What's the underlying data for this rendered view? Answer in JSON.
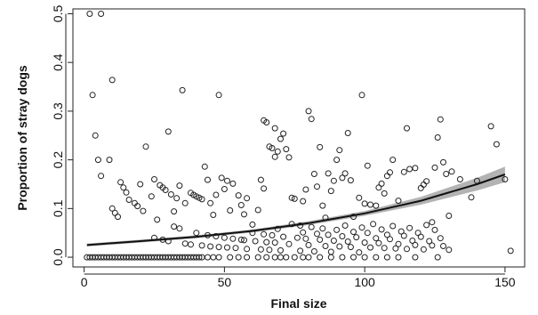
{
  "chart_data": {
    "type": "scatter",
    "title": "",
    "xlabel": "Final size",
    "ylabel": "Proportion of stray dogs",
    "xlim": [
      -4,
      157
    ],
    "ylim": [
      -0.02,
      0.51
    ],
    "xticks": [
      0,
      50,
      100,
      150
    ],
    "yticks": [
      0.0,
      0.1,
      0.2,
      0.3,
      0.4,
      0.5
    ],
    "xtick_labels": [
      "0",
      "50",
      "100",
      "150"
    ],
    "ytick_labels": [
      "0.0",
      "0.1",
      "0.2",
      "0.3",
      "0.4",
      "0.5"
    ],
    "grid": false,
    "legend": "none",
    "point_color": "#222222",
    "fit_color": "#111111",
    "band_color": "#9a9a9a",
    "fit_line": {
      "x": [
        1,
        20,
        40,
        60,
        80,
        100,
        120,
        140,
        150
      ],
      "y": [
        0.025,
        0.033,
        0.042,
        0.054,
        0.07,
        0.09,
        0.116,
        0.15,
        0.17
      ],
      "lower": [
        0.022,
        0.03,
        0.039,
        0.051,
        0.066,
        0.085,
        0.108,
        0.137,
        0.154
      ],
      "upper": [
        0.028,
        0.036,
        0.045,
        0.057,
        0.074,
        0.095,
        0.124,
        0.163,
        0.186
      ]
    },
    "series": [
      {
        "points": [
          [
            2,
            0.5
          ],
          [
            6,
            0.5
          ],
          [
            3,
            0.333
          ],
          [
            10,
            0.364
          ],
          [
            4,
            0.25
          ],
          [
            5,
            0.2
          ],
          [
            6,
            0.167
          ],
          [
            9,
            0.2
          ],
          [
            10,
            0.1
          ],
          [
            11,
            0.091
          ],
          [
            12,
            0.083
          ],
          [
            13,
            0.154
          ],
          [
            14,
            0.143
          ],
          [
            15,
            0.133
          ],
          [
            16,
            0.118
          ],
          [
            18,
            0.111
          ],
          [
            19,
            0.105
          ],
          [
            20,
            0.15
          ],
          [
            21,
            0.095
          ],
          [
            22,
            0.227
          ],
          [
            24,
            0.125
          ],
          [
            25,
            0.16
          ],
          [
            26,
            0.077
          ],
          [
            27,
            0.148
          ],
          [
            28,
            0.143
          ],
          [
            29,
            0.138
          ],
          [
            30,
            0.258
          ],
          [
            31,
            0.129
          ],
          [
            32,
            0.094
          ],
          [
            33,
            0.121
          ],
          [
            34,
            0.147
          ],
          [
            35,
            0.343
          ],
          [
            36,
            0.111
          ],
          [
            38,
            0.132
          ],
          [
            39,
            0.128
          ],
          [
            40,
            0.125
          ],
          [
            41,
            0.122
          ],
          [
            42,
            0.119
          ],
          [
            43,
            0.186
          ],
          [
            44,
            0.159
          ],
          [
            45,
            0.111
          ],
          [
            46,
            0.087
          ],
          [
            47,
            0.128
          ],
          [
            48,
            0.333
          ],
          [
            49,
            0.163
          ],
          [
            50,
            0.14
          ],
          [
            51,
            0.157
          ],
          [
            52,
            0.096
          ],
          [
            53,
            0.151
          ],
          [
            55,
            0.127
          ],
          [
            56,
            0.107
          ],
          [
            57,
            0.088
          ],
          [
            58,
            0.121
          ],
          [
            60,
            0.067
          ],
          [
            62,
            0.097
          ],
          [
            63,
            0.159
          ],
          [
            64,
            0.141
          ],
          [
            64,
            0.281
          ],
          [
            65,
            0.277
          ],
          [
            66,
            0.227
          ],
          [
            67,
            0.224
          ],
          [
            68,
            0.206
          ],
          [
            68,
            0.265
          ],
          [
            69,
            0.217
          ],
          [
            70,
            0.243
          ],
          [
            71,
            0.254
          ],
          [
            72,
            0.222
          ],
          [
            73,
            0.205
          ],
          [
            74,
            0.122
          ],
          [
            75,
            0.12
          ],
          [
            77,
            0.065
          ],
          [
            78,
            0.115
          ],
          [
            79,
            0.139
          ],
          [
            80,
            0.3
          ],
          [
            81,
            0.284
          ],
          [
            82,
            0.171
          ],
          [
            83,
            0.145
          ],
          [
            84,
            0.226
          ],
          [
            85,
            0.106
          ],
          [
            86,
            0.081
          ],
          [
            87,
            0.172
          ],
          [
            88,
            0.136
          ],
          [
            89,
            0.157
          ],
          [
            90,
            0.2
          ],
          [
            91,
            0.22
          ],
          [
            92,
            0.163
          ],
          [
            93,
            0.172
          ],
          [
            94,
            0.255
          ],
          [
            95,
            0.158
          ],
          [
            96,
            0.083
          ],
          [
            98,
            0.122
          ],
          [
            99,
            0.333
          ],
          [
            100,
            0.11
          ],
          [
            101,
            0.188
          ],
          [
            102,
            0.108
          ],
          [
            104,
            0.106
          ],
          [
            105,
            0.143
          ],
          [
            106,
            0.151
          ],
          [
            107,
            0.131
          ],
          [
            108,
            0.167
          ],
          [
            109,
            0.174
          ],
          [
            110,
            0.2
          ],
          [
            112,
            0.116
          ],
          [
            114,
            0.175
          ],
          [
            115,
            0.265
          ],
          [
            116,
            0.181
          ],
          [
            118,
            0.183
          ],
          [
            119,
            0.05
          ],
          [
            120,
            0.142
          ],
          [
            121,
            0.149
          ],
          [
            122,
            0.156
          ],
          [
            124,
            0.072
          ],
          [
            125,
            0.184
          ],
          [
            126,
            0.246
          ],
          [
            127,
            0.283
          ],
          [
            128,
            0.195
          ],
          [
            129,
            0.171
          ],
          [
            130,
            0.085
          ],
          [
            131,
            0.176
          ],
          [
            134,
            0.16
          ],
          [
            138,
            0.123
          ],
          [
            140,
            0.157
          ],
          [
            145,
            0.269
          ],
          [
            147,
            0.232
          ],
          [
            150,
            0.16
          ],
          [
            152,
            0.013
          ],
          [
            1,
            0.0
          ],
          [
            2,
            0.0
          ],
          [
            3,
            0.0
          ],
          [
            4,
            0.0
          ],
          [
            5,
            0.0
          ],
          [
            6,
            0.0
          ],
          [
            7,
            0.0
          ],
          [
            8,
            0.0
          ],
          [
            9,
            0.0
          ],
          [
            10,
            0.0
          ],
          [
            11,
            0.0
          ],
          [
            12,
            0.0
          ],
          [
            13,
            0.0
          ],
          [
            14,
            0.0
          ],
          [
            15,
            0.0
          ],
          [
            16,
            0.0
          ],
          [
            17,
            0.0
          ],
          [
            18,
            0.0
          ],
          [
            19,
            0.0
          ],
          [
            20,
            0.0
          ],
          [
            21,
            0.0
          ],
          [
            22,
            0.0
          ],
          [
            23,
            0.0
          ],
          [
            24,
            0.0
          ],
          [
            25,
            0.0
          ],
          [
            26,
            0.0
          ],
          [
            27,
            0.0
          ],
          [
            28,
            0.0
          ],
          [
            29,
            0.0
          ],
          [
            30,
            0.0
          ],
          [
            31,
            0.0
          ],
          [
            32,
            0.0
          ],
          [
            33,
            0.0
          ],
          [
            34,
            0.0
          ],
          [
            35,
            0.0
          ],
          [
            36,
            0.0
          ],
          [
            37,
            0.0
          ],
          [
            38,
            0.0
          ],
          [
            39,
            0.0
          ],
          [
            40,
            0.0
          ],
          [
            41,
            0.0
          ],
          [
            42,
            0.0
          ],
          [
            44,
            0.0
          ],
          [
            46,
            0.0
          ],
          [
            48,
            0.0
          ],
          [
            52,
            0.0
          ],
          [
            55,
            0.0
          ],
          [
            58,
            0.0
          ],
          [
            62,
            0.0
          ],
          [
            65,
            0.0
          ],
          [
            68,
            0.0
          ],
          [
            70,
            0.0
          ],
          [
            72,
            0.0
          ],
          [
            75,
            0.0
          ],
          [
            78,
            0.0
          ],
          [
            80,
            0.0
          ],
          [
            84,
            0.0
          ],
          [
            88,
            0.0
          ],
          [
            92,
            0.0
          ],
          [
            96,
            0.0
          ],
          [
            100,
            0.0
          ],
          [
            104,
            0.0
          ],
          [
            108,
            0.0
          ],
          [
            112,
            0.0
          ],
          [
            118,
            0.0
          ],
          [
            126,
            0.0
          ],
          [
            36,
            0.028
          ],
          [
            38,
            0.026
          ],
          [
            40,
            0.05
          ],
          [
            42,
            0.024
          ],
          [
            44,
            0.045
          ],
          [
            45,
            0.022
          ],
          [
            47,
            0.043
          ],
          [
            48,
            0.021
          ],
          [
            50,
            0.04
          ],
          [
            51,
            0.02
          ],
          [
            53,
            0.038
          ],
          [
            54,
            0.019
          ],
          [
            56,
            0.036
          ],
          [
            57,
            0.035
          ],
          [
            58,
            0.017
          ],
          [
            60,
            0.05
          ],
          [
            61,
            0.033
          ],
          [
            63,
            0.016
          ],
          [
            64,
            0.047
          ],
          [
            65,
            0.031
          ],
          [
            66,
            0.015
          ],
          [
            67,
            0.045
          ],
          [
            68,
            0.03
          ],
          [
            69,
            0.058
          ],
          [
            70,
            0.014
          ],
          [
            71,
            0.042
          ],
          [
            73,
            0.027
          ],
          [
            74,
            0.068
          ],
          [
            76,
            0.04
          ],
          [
            77,
            0.013
          ],
          [
            78,
            0.051
          ],
          [
            79,
            0.038
          ],
          [
            80,
            0.025
          ],
          [
            81,
            0.062
          ],
          [
            82,
            0.012
          ],
          [
            83,
            0.048
          ],
          [
            84,
            0.036
          ],
          [
            85,
            0.059
          ],
          [
            86,
            0.023
          ],
          [
            87,
            0.046
          ],
          [
            88,
            0.011
          ],
          [
            89,
            0.034
          ],
          [
            90,
            0.056
          ],
          [
            91,
            0.022
          ],
          [
            92,
            0.043
          ],
          [
            93,
            0.065
          ],
          [
            94,
            0.032
          ],
          [
            95,
            0.021
          ],
          [
            96,
            0.052
          ],
          [
            97,
            0.041
          ],
          [
            98,
            0.01
          ],
          [
            99,
            0.061
          ],
          [
            100,
            0.03
          ],
          [
            101,
            0.05
          ],
          [
            102,
            0.02
          ],
          [
            103,
            0.068
          ],
          [
            104,
            0.039
          ],
          [
            105,
            0.029
          ],
          [
            106,
            0.057
          ],
          [
            107,
            0.019
          ],
          [
            108,
            0.046
          ],
          [
            109,
            0.037
          ],
          [
            110,
            0.064
          ],
          [
            111,
            0.018
          ],
          [
            112,
            0.027
          ],
          [
            113,
            0.053
          ],
          [
            114,
            0.044
          ],
          [
            115,
            0.017
          ],
          [
            116,
            0.06
          ],
          [
            117,
            0.034
          ],
          [
            118,
            0.025
          ],
          [
            120,
            0.042
          ],
          [
            121,
            0.016
          ],
          [
            122,
            0.066
          ],
          [
            123,
            0.033
          ],
          [
            124,
            0.024
          ],
          [
            125,
            0.056
          ],
          [
            127,
            0.039
          ],
          [
            128,
            0.023
          ],
          [
            130,
            0.015
          ],
          [
            25,
            0.04
          ],
          [
            28,
            0.036
          ],
          [
            30,
            0.033
          ],
          [
            32,
            0.063
          ],
          [
            34,
            0.059
          ]
        ]
      }
    ]
  }
}
